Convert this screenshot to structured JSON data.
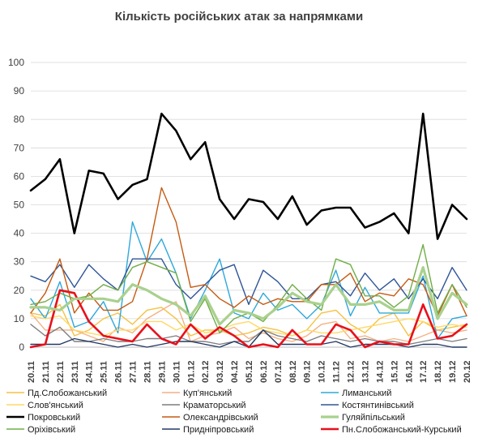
{
  "chart_data": {
    "type": "line",
    "title": "Кількість російських атак за напрямками",
    "xlabel": "",
    "ylabel": "",
    "ylim": [
      0,
      100
    ],
    "yticks": [
      0,
      10,
      20,
      30,
      40,
      50,
      60,
      70,
      80,
      90,
      100
    ],
    "grid": true,
    "legend_position": "bottom",
    "categories": [
      "20.11",
      "21.11",
      "22.11",
      "23.11",
      "24.11",
      "25.11",
      "26.11",
      "27.11",
      "28.11",
      "29.11",
      "30.11",
      "01.12",
      "02.12",
      "03.12",
      "04.12",
      "05.12",
      "06.12",
      "07.12",
      "08.12",
      "09.12",
      "10.12",
      "11.12",
      "12.12",
      "13.12",
      "14.12",
      "15.12",
      "16.12",
      "17.12",
      "18.12",
      "19.12",
      "20.12"
    ],
    "series": [
      {
        "name": "Пд.Слобожанський",
        "color": "#f5c242",
        "width": 1.4,
        "values": [
          12,
          11,
          15,
          4,
          6,
          10,
          12,
          8,
          13,
          14,
          10,
          4,
          6,
          6,
          4,
          5,
          7,
          6,
          4,
          6,
          12,
          13,
          8,
          5,
          10,
          12,
          4,
          9,
          6,
          7,
          8
        ]
      },
      {
        "name": "Куп'янський",
        "color": "#f4b183",
        "width": 1.4,
        "values": [
          12,
          6,
          6,
          6,
          4,
          2,
          7,
          5,
          10,
          13,
          16,
          2,
          4,
          5,
          7,
          3,
          5,
          3,
          2,
          4,
          8,
          9,
          3,
          4,
          2,
          3,
          2,
          4,
          6,
          5,
          6
        ]
      },
      {
        "name": "Лиманський",
        "color": "#2ea8dc",
        "width": 1.4,
        "values": [
          17,
          10,
          23,
          7,
          9,
          16,
          5,
          44,
          30,
          38,
          26,
          10,
          20,
          31,
          12,
          10,
          19,
          13,
          15,
          10,
          15,
          27,
          11,
          21,
          12,
          12,
          12,
          25,
          3,
          10,
          11
        ]
      },
      {
        "name": "Слов'янський",
        "color": "#ffd966",
        "width": 1.4,
        "values": [
          11,
          10,
          11,
          6,
          5,
          4,
          6,
          6,
          9,
          9,
          6,
          8,
          5,
          6,
          8,
          9,
          6,
          5,
          4,
          6,
          5,
          5,
          6,
          7,
          8,
          9,
          10,
          9,
          7,
          8,
          7
        ]
      },
      {
        "name": "Краматорський",
        "color": "#7f7f7f",
        "width": 1.4,
        "values": [
          8,
          4,
          7,
          2,
          2,
          3,
          2,
          2,
          3,
          3,
          4,
          2,
          2,
          1,
          2,
          2,
          6,
          4,
          3,
          2,
          4,
          3,
          2,
          3,
          2,
          2,
          1,
          2,
          3,
          2,
          3
        ]
      },
      {
        "name": "Костянтинівський",
        "color": "#2e5597",
        "width": 1.4,
        "values": [
          25,
          23,
          29,
          21,
          29,
          24,
          20,
          31,
          31,
          31,
          22,
          17,
          22,
          27,
          29,
          15,
          27,
          23,
          17,
          17,
          22,
          23,
          18,
          26,
          20,
          24,
          17,
          24,
          17,
          28,
          20
        ]
      },
      {
        "name": "Покровський",
        "color": "#000000",
        "width": 2.6,
        "values": [
          55,
          59,
          66,
          40,
          62,
          61,
          52,
          57,
          59,
          82,
          76,
          66,
          72,
          52,
          45,
          52,
          51,
          45,
          53,
          43,
          48,
          49,
          49,
          42,
          44,
          47,
          40,
          82,
          38,
          50,
          45
        ]
      },
      {
        "name": "Олександрівський",
        "color": "#c55a11",
        "width": 1.4,
        "values": [
          12,
          19,
          31,
          12,
          19,
          13,
          13,
          16,
          31,
          56,
          44,
          21,
          22,
          17,
          14,
          18,
          15,
          17,
          16,
          16,
          22,
          22,
          26,
          16,
          19,
          18,
          24,
          22,
          11,
          22,
          11
        ]
      },
      {
        "name": "Гуляйпільський",
        "color": "#a9d18e",
        "width": 3.2,
        "values": [
          14,
          14,
          13,
          17,
          17,
          17,
          16,
          22,
          20,
          17,
          15,
          11,
          18,
          8,
          13,
          12,
          10,
          14,
          19,
          16,
          15,
          22,
          15,
          15,
          16,
          13,
          13,
          28,
          10,
          19,
          15
        ]
      },
      {
        "name": "Оріхівський",
        "color": "#70ad47",
        "width": 1.4,
        "values": [
          15,
          16,
          19,
          17,
          18,
          22,
          20,
          28,
          30,
          28,
          26,
          9,
          17,
          5,
          10,
          12,
          9,
          15,
          22,
          17,
          13,
          31,
          29,
          18,
          18,
          14,
          18,
          36,
          12,
          22,
          14
        ]
      },
      {
        "name": "Придніпровський",
        "color": "#203864",
        "width": 1.4,
        "values": [
          1,
          1,
          1,
          3,
          2,
          1,
          0,
          1,
          0,
          1,
          2,
          2,
          1,
          0,
          2,
          0,
          6,
          1,
          1,
          1,
          1,
          2,
          0,
          1,
          1,
          1,
          0,
          1,
          1,
          0,
          0
        ]
      },
      {
        "name": "Пн.Слобожанський-Курський",
        "color": "#e8101b",
        "width": 2.6,
        "values": [
          0,
          1,
          20,
          19,
          9,
          4,
          3,
          2,
          8,
          3,
          1,
          8,
          3,
          7,
          4,
          0,
          1,
          0,
          6,
          1,
          1,
          8,
          6,
          0,
          2,
          1,
          1,
          15,
          3,
          4,
          8
        ]
      }
    ]
  }
}
